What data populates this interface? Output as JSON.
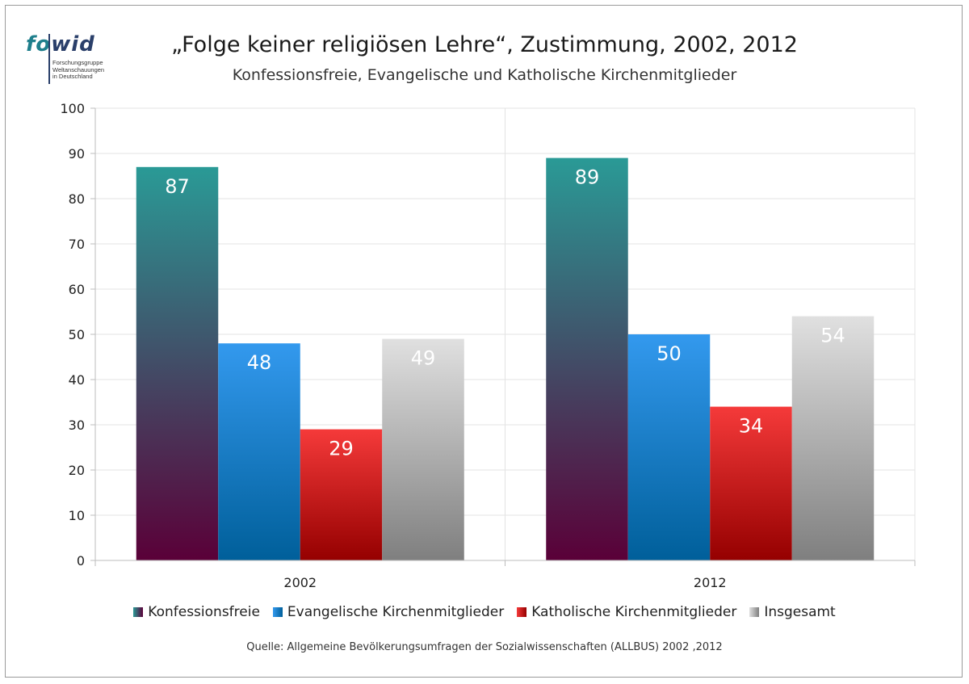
{
  "logo": {
    "part1": "fo",
    "part2": "wid",
    "subtitle": "Forschungsgruppe\nWeltanschauungen\nin Deutschland"
  },
  "chart_data": {
    "type": "bar",
    "title": "„Folge keiner religiösen Lehre“, Zustimmung, 2002, 2012",
    "subtitle": "Konfessionsfreie, Evangelische und Katholische Kirchenmitglieder",
    "categories": [
      "2002",
      "2012"
    ],
    "series": [
      {
        "name": "Konfessionsfreie",
        "values": [
          87,
          89
        ],
        "color_top": "#2a9a96",
        "color_bottom": "#5a0038"
      },
      {
        "name": "Evangelische Kirchenmitglieder",
        "values": [
          48,
          50
        ],
        "color_top": "#3399ee",
        "color_bottom": "#005f9a"
      },
      {
        "name": "Katholische Kirchenmitglieder",
        "values": [
          29,
          34
        ],
        "color_top": "#f53a3a",
        "color_bottom": "#950000"
      },
      {
        "name": "Insgesamt",
        "values": [
          49,
          54
        ],
        "color_top": "#e0e0e0",
        "color_bottom": "#7f7f7f"
      }
    ],
    "ylim": [
      0,
      100
    ],
    "yticks": [
      0,
      10,
      20,
      30,
      40,
      50,
      60,
      70,
      80,
      90,
      100
    ],
    "grid": true,
    "data_labels": true,
    "legend_position": "bottom"
  },
  "source": "Quelle: Allgemeine Bevölkerungsumfragen der Sozialwissenschaften (ALLBUS) 2002 ,2012"
}
